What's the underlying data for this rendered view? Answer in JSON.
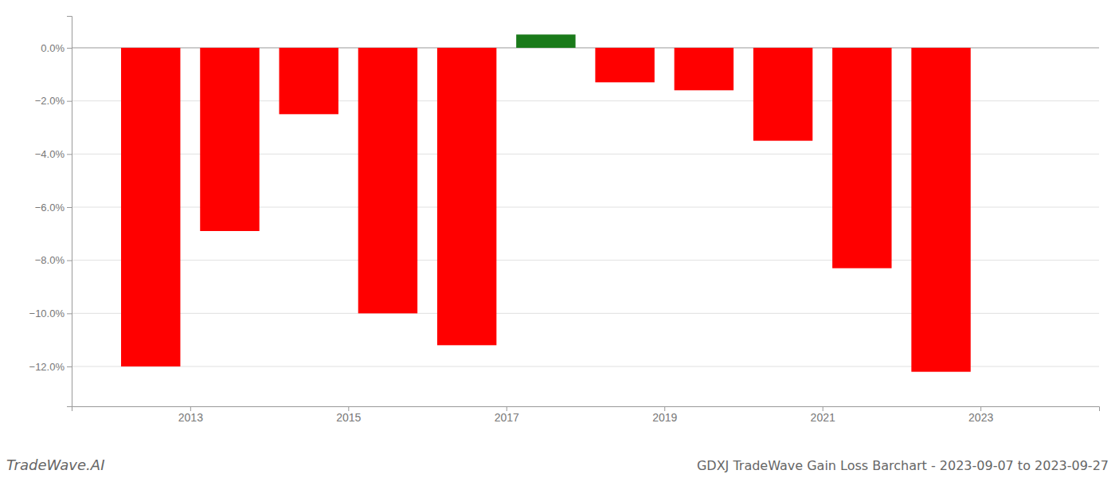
{
  "chart_data": {
    "type": "bar",
    "title": "GDXJ TradeWave Gain Loss Barchart - 2023-09-07 to 2023-09-27",
    "annotations": [
      "TradeWave.AI"
    ],
    "x": [
      2012.5,
      2013.5,
      2014.5,
      2015.5,
      2016.5,
      2017.5,
      2018.5,
      2019.5,
      2020.5,
      2021.5,
      2022.5
    ],
    "values": [
      -0.12,
      -0.069,
      -0.025,
      -0.1,
      -0.112,
      0.005,
      -0.013,
      -0.016,
      -0.035,
      -0.083,
      -0.122
    ],
    "colors": [
      "#ff0000",
      "#ff0000",
      "#ff0000",
      "#ff0000",
      "#ff0000",
      "#1a7a1a",
      "#ff0000",
      "#ff0000",
      "#ff0000",
      "#ff0000",
      "#ff0000"
    ],
    "xlim": [
      2011.5,
      2024.5
    ],
    "xticks": [
      2013,
      2015,
      2017,
      2019,
      2021,
      2023
    ],
    "ylim": [
      -0.135,
      0.012
    ],
    "yticks": [
      {
        "value": -0.12,
        "label": "−12.0%"
      },
      {
        "value": -0.1,
        "label": "−10.0%"
      },
      {
        "value": -0.08,
        "label": "−8.0%"
      },
      {
        "value": -0.06,
        "label": "−6.0%"
      },
      {
        "value": -0.04,
        "label": "−4.0%"
      },
      {
        "value": -0.02,
        "label": "−2.0%"
      },
      {
        "value": 0,
        "label": "0.0%"
      }
    ],
    "grid": true
  }
}
